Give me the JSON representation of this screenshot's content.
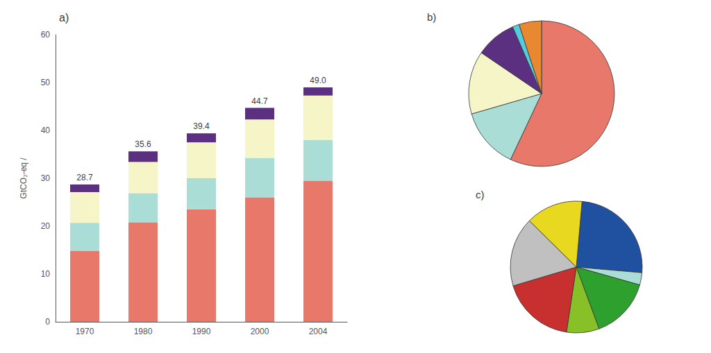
{
  "chart_data": [
    {
      "type": "bar",
      "title": "a)",
      "stacked": true,
      "grid": false,
      "ylabel": "GtCO₂-eq /",
      "categories": [
        "1970",
        "1980",
        "1990",
        "2000",
        "2004"
      ],
      "series": [
        {
          "color": "#e8796a",
          "values": [
            14.8,
            20.8,
            23.5,
            26.0,
            29.5
          ]
        },
        {
          "color": "#aaddd6",
          "values": [
            5.9,
            6.1,
            6.5,
            8.2,
            8.5
          ]
        },
        {
          "color": "#f5f5c8",
          "values": [
            6.4,
            6.5,
            7.5,
            8.1,
            9.3
          ]
        },
        {
          "color": "#5c3080",
          "values": [
            1.6,
            2.2,
            1.9,
            2.4,
            1.7
          ]
        }
      ],
      "totals": [
        28.7,
        35.6,
        39.4,
        44.7,
        49.0
      ],
      "total_labels": [
        "28.7",
        "35.6",
        "39.4",
        "44.7",
        "49.0"
      ],
      "ylim": [
        0,
        60
      ],
      "yticks": [
        0,
        10,
        20,
        30,
        40,
        50,
        60
      ]
    },
    {
      "type": "pie",
      "title": "b)",
      "values": [
        57.0,
        13.5,
        14.0,
        9.0,
        1.5,
        5.0
      ],
      "colors": [
        "#e8796a",
        "#aaddd6",
        "#f5f5c8",
        "#5c3080",
        "#55ccdd",
        "#e88830"
      ]
    },
    {
      "type": "pie",
      "title": "c)",
      "values": [
        25.0,
        3.0,
        15.0,
        8.0,
        18.0,
        17.0,
        14.0
      ],
      "colors": [
        "#2050a0",
        "#aaddd6",
        "#2ea02e",
        "#88c028",
        "#c83030",
        "#c0c0c0",
        "#e8d820"
      ]
    }
  ]
}
